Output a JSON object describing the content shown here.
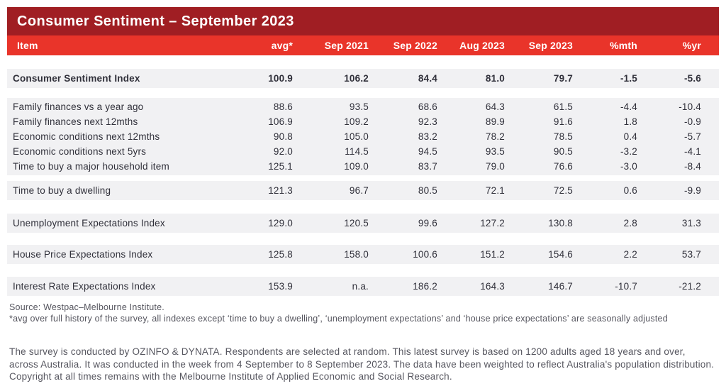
{
  "chart_data": {
    "type": "table",
    "title": "Consumer Sentiment – September 2023",
    "columns": [
      "Item",
      "avg*",
      "Sep 2021",
      "Sep 2022",
      "Aug 2023",
      "Sep 2023",
      "%mth",
      "%yr"
    ],
    "groups": [
      {
        "rows": [
          {
            "item": "Consumer Sentiment Index",
            "bold": true,
            "values": [
              "100.9",
              "106.2",
              "84.4",
              "81.0",
              "79.7",
              "-1.5",
              "-5.6"
            ]
          }
        ]
      },
      {
        "rows": [
          {
            "item": "Family finances vs a year ago",
            "values": [
              "88.6",
              "93.5",
              "68.6",
              "64.3",
              "61.5",
              "-4.4",
              "-10.4"
            ]
          },
          {
            "item": "Family finances next 12mths",
            "values": [
              "106.9",
              "109.2",
              "92.3",
              "89.9",
              "91.6",
              "1.8",
              "-0.9"
            ]
          },
          {
            "item": "Economic conditions next 12mths",
            "values": [
              "90.8",
              "105.0",
              "83.2",
              "78.2",
              "78.5",
              "0.4",
              "-5.7"
            ]
          },
          {
            "item": "Economic conditions next 5yrs",
            "values": [
              "92.0",
              "114.5",
              "94.5",
              "93.5",
              "90.5",
              "-3.2",
              "-4.1"
            ]
          },
          {
            "item": "Time to buy a major household item",
            "values": [
              "125.1",
              "109.0",
              "83.7",
              "79.0",
              "76.6",
              "-3.0",
              "-8.4"
            ]
          }
        ]
      },
      {
        "rows": [
          {
            "item": "Time to buy a dwelling",
            "values": [
              "121.3",
              "96.7",
              "80.5",
              "72.1",
              "72.5",
              "0.6",
              "-9.9"
            ]
          }
        ]
      },
      {
        "rows": [
          {
            "item": "Unemployment Expectations Index",
            "values": [
              "129.0",
              "120.5",
              "99.6",
              "127.2",
              "130.8",
              "2.8",
              "31.3"
            ]
          }
        ]
      },
      {
        "rows": [
          {
            "item": "House Price Expectations Index",
            "values": [
              "125.8",
              "158.0",
              "100.6",
              "151.2",
              "154.6",
              "2.2",
              "53.7"
            ]
          }
        ]
      },
      {
        "rows": [
          {
            "item": "Interest Rate Expectations Index",
            "values": [
              "153.9",
              "n.a.",
              "186.2",
              "164.3",
              "146.7",
              "-10.7",
              "-21.2"
            ]
          }
        ]
      }
    ]
  },
  "notes": {
    "source": "Source: Westpac–Melbourne Institute.",
    "footnote": "*avg over full history of the survey, all indexes except ‘time to buy a dwelling’, ‘unemployment expectations’ and ‘house price expectations’ are seasonally adjusted",
    "disclaimer": "The survey is conducted by OZINFO & DYNATA. Respondents are selected at random. This latest survey is based on 1200 adults aged 18 years and over, across Australia. It was conducted in the week from 4 September to 8 September 2023. The data have been weighted to reflect Australia's population distribution. Copyright at all times remains with the Melbourne Institute of Applied Economic and Social Research."
  },
  "colors": {
    "title_bar_bg": "#a01e23",
    "header_row_bg": "#e9342a",
    "row_band_bg": "#f1f1f3",
    "header_text": "#ffffff",
    "table_text": "#30303a",
    "note_text": "#56565f"
  }
}
